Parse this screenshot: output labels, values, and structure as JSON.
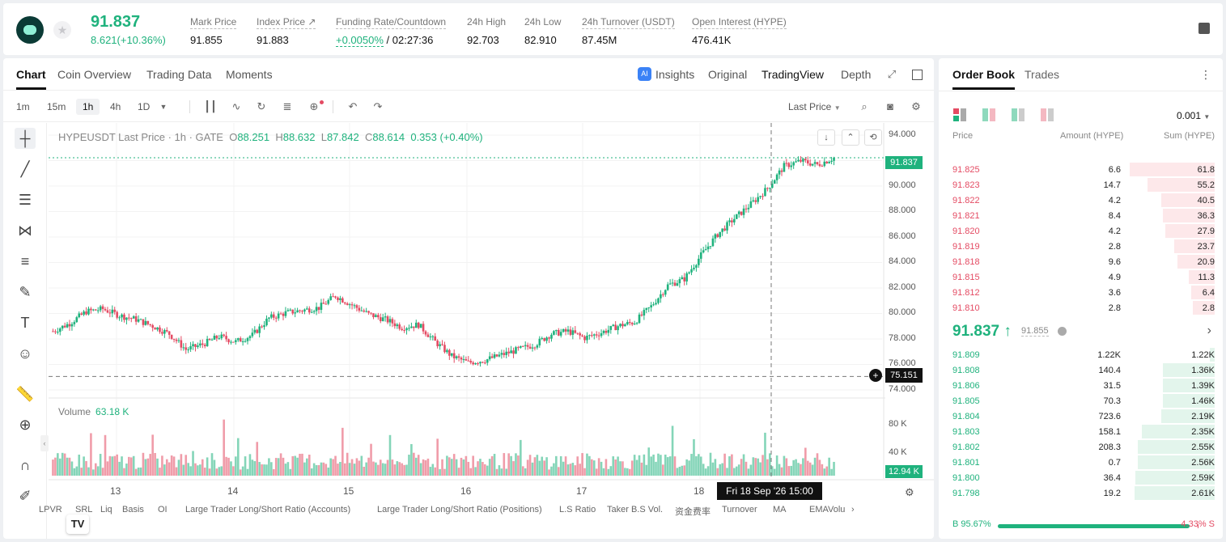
{
  "header": {
    "last_price": "91.837",
    "change": "8.621(+10.36%)",
    "stats": [
      {
        "label": "Mark Price",
        "value": "91.855"
      },
      {
        "label": "Index Price ↗",
        "value": "91.883"
      },
      {
        "label": "Funding Rate/Countdown",
        "value": "+0.0050%",
        "value2": "/ 02:27:36"
      },
      {
        "label": "24h High",
        "value": "92.703"
      },
      {
        "label": "24h Low",
        "value": "82.910"
      },
      {
        "label": "24h Turnover (USDT)",
        "value": "87.45M"
      },
      {
        "label": "Open Interest (HYPE)",
        "value": "476.41K"
      }
    ]
  },
  "chart_tabs": [
    "Chart",
    "Coin Overview",
    "Trading Data",
    "Moments"
  ],
  "view_tabs": [
    "Insights",
    "Original",
    "TradingView",
    "Depth"
  ],
  "timeframes": [
    "1m",
    "15m",
    "1h",
    "4h",
    "1D"
  ],
  "price_source": "Last Price",
  "legend": {
    "symbol": "HYPEUSDT Last Price · 1h · GATE",
    "o_lbl": "O",
    "o": "88.251",
    "h_lbl": "H",
    "h": "88.632",
    "l_lbl": "L",
    "l": "87.842",
    "c_lbl": "C",
    "c": "88.614",
    "chg": "0.353 (+0.40%)"
  },
  "y_ticks": [
    "94.000",
    "90.000",
    "88.000",
    "86.000",
    "84.000",
    "82.000",
    "80.000",
    "78.000",
    "76.000",
    "74.000"
  ],
  "current_price_tag": "91.837",
  "hover_price_tag": "75.151",
  "volume": {
    "label": "Volume",
    "value": "63.18 K",
    "ticks": [
      "80 K",
      "40 K"
    ],
    "tag": "12.94 K"
  },
  "x_ticks": [
    "13",
    "14",
    "15",
    "16",
    "17",
    "18"
  ],
  "x_hover": "Fri 18 Sep '26   15:00",
  "indicators": [
    "LPVR",
    "SRL",
    "Liq",
    "Basis",
    "OI",
    "Large Trader Long/Short Ratio (Accounts)",
    "Large Trader Long/Short Ratio (Positions)",
    "L.S Ratio",
    "Taker B.S Vol.",
    "资金费率",
    "Turnover",
    "MA",
    "EMA",
    "Volu"
  ],
  "chart_data": {
    "type": "candlestick",
    "title": "HYPEUSDT Last Price · 1h · GATE",
    "ylim": [
      74,
      94
    ],
    "x_labels": [
      "13",
      "14",
      "15",
      "16",
      "17",
      "18"
    ],
    "close_path": [
      78.6,
      79.2,
      80.1,
      80.3,
      79.8,
      79.5,
      79.0,
      78.4,
      77.2,
      77.6,
      78.2,
      77.8,
      78.3,
      79.6,
      80.0,
      80.2,
      80.4,
      81.3,
      80.6,
      79.9,
      79.5,
      78.9,
      79.1,
      77.8,
      76.7,
      76.2,
      76.4,
      76.8,
      77.2,
      77.6,
      78.4,
      78.6,
      78.1,
      78.5,
      79.0,
      79.3,
      80.5,
      82.1,
      82.6,
      84.4,
      86.0,
      87.2,
      88.3,
      89.5,
      91.2,
      91.6,
      91.3,
      91.837
    ],
    "volume_series": {
      "ylim": [
        0,
        100
      ],
      "peak_values": [
        95,
        90,
        82
      ]
    }
  },
  "orderbook": {
    "tabs": [
      "Order Book",
      "Trades"
    ],
    "precision": "0.001",
    "headers": [
      "Price",
      "Amount (HYPE)",
      "Sum (HYPE)"
    ],
    "asks": [
      {
        "price": "91.825",
        "amount": "6.6",
        "sum": "61.8",
        "depth": 0.99
      },
      {
        "price": "91.823",
        "amount": "14.7",
        "sum": "55.2",
        "depth": 0.78
      },
      {
        "price": "91.822",
        "amount": "4.2",
        "sum": "40.5",
        "depth": 0.62
      },
      {
        "price": "91.821",
        "amount": "8.4",
        "sum": "36.3",
        "depth": 0.6
      },
      {
        "price": "91.820",
        "amount": "4.2",
        "sum": "27.9",
        "depth": 0.58
      },
      {
        "price": "91.819",
        "amount": "2.8",
        "sum": "23.7",
        "depth": 0.47
      },
      {
        "price": "91.818",
        "amount": "9.6",
        "sum": "20.9",
        "depth": 0.43
      },
      {
        "price": "91.815",
        "amount": "4.9",
        "sum": "11.3",
        "depth": 0.3
      },
      {
        "price": "91.812",
        "amount": "3.6",
        "sum": "6.4",
        "depth": 0.27
      },
      {
        "price": "91.810",
        "amount": "2.8",
        "sum": "2.8",
        "depth": 0.25
      }
    ],
    "mid_price": "91.837 ↑",
    "mark": "91.855",
    "bids": [
      {
        "price": "91.809",
        "amount": "1.22K",
        "sum": "1.22K",
        "depth": 0.06
      },
      {
        "price": "91.808",
        "amount": "140.4",
        "sum": "1.36K",
        "depth": 0.6
      },
      {
        "price": "91.806",
        "amount": "31.5",
        "sum": "1.39K",
        "depth": 0.6
      },
      {
        "price": "91.805",
        "amount": "70.3",
        "sum": "1.46K",
        "depth": 0.6
      },
      {
        "price": "91.804",
        "amount": "723.6",
        "sum": "2.19K",
        "depth": 0.62
      },
      {
        "price": "91.803",
        "amount": "158.1",
        "sum": "2.35K",
        "depth": 0.85
      },
      {
        "price": "91.802",
        "amount": "208.3",
        "sum": "2.55K",
        "depth": 0.9
      },
      {
        "price": "91.801",
        "amount": "0.7",
        "sum": "2.56K",
        "depth": 0.9
      },
      {
        "price": "91.800",
        "amount": "36.4",
        "sum": "2.59K",
        "depth": 0.92
      },
      {
        "price": "91.798",
        "amount": "19.2",
        "sum": "2.61K",
        "depth": 0.93
      }
    ],
    "buy_ratio": "B 95.67%",
    "sell_ratio": "4.33% S",
    "buy_fraction": 0.9567,
    "colors": {
      "buy": "#1fb27d",
      "sell": "#e44b63"
    }
  }
}
